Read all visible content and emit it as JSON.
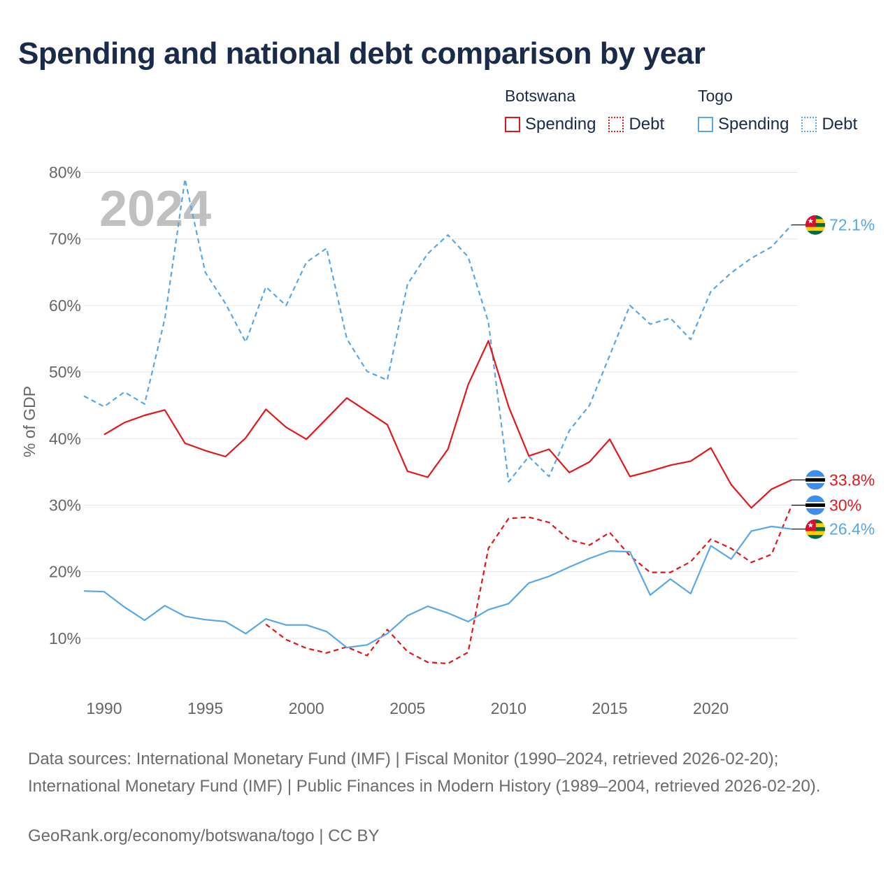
{
  "title": "Spending and national debt comparison by year",
  "watermark_year": "2024",
  "legend": {
    "groups": [
      {
        "country": "Botswana",
        "color": "#e3171b",
        "items": [
          {
            "label": "Spending",
            "style": "solid"
          },
          {
            "label": "Debt",
            "style": "dotted"
          }
        ]
      },
      {
        "country": "Togo",
        "color": "#5aa7e6",
        "items": [
          {
            "label": "Spending",
            "style": "solid"
          },
          {
            "label": "Debt",
            "style": "dotted"
          }
        ]
      }
    ]
  },
  "colors": {
    "botswana": "#e3171b",
    "togo": "#5aa7e6",
    "grid": "#e6e6e6",
    "axis_text": "#666666",
    "title": "#1b2a48",
    "watermark": "#c0c0c0"
  },
  "chart_data": {
    "type": "line",
    "title": "Spending and national debt comparison by year",
    "xlabel": "",
    "ylabel": "% of GDP",
    "xlim": [
      1989,
      2024.3
    ],
    "ylim": [
      0,
      83
    ],
    "x_ticks": [
      1990,
      1995,
      2000,
      2005,
      2010,
      2015,
      2020
    ],
    "y_ticks": [
      10,
      20,
      30,
      40,
      50,
      60,
      70,
      80
    ],
    "y_tick_labels": [
      "10%",
      "20%",
      "30%",
      "40%",
      "50%",
      "60%",
      "70%",
      "80%"
    ],
    "grid": true,
    "series": [
      {
        "name": "Togo Debt",
        "country": "Togo",
        "metric": "Debt",
        "color": "#5aa7e6",
        "dash": "dashed",
        "end_label": "72.1%",
        "flag": "togo-flag",
        "points": [
          [
            1989,
            46.4
          ],
          [
            1990,
            44.8
          ],
          [
            1991,
            47.0
          ],
          [
            1992,
            45.2
          ],
          [
            1993,
            58.0
          ],
          [
            1994,
            79.0
          ],
          [
            1995,
            65.0
          ],
          [
            1996,
            60.3
          ],
          [
            1997,
            54.5
          ],
          [
            1998,
            62.8
          ],
          [
            1999,
            60.0
          ],
          [
            2000,
            66.5
          ],
          [
            2001,
            68.6
          ],
          [
            2002,
            55.0
          ],
          [
            2003,
            50.1
          ],
          [
            2004,
            48.8
          ],
          [
            2005,
            63.2
          ],
          [
            2006,
            67.8
          ],
          [
            2007,
            70.6
          ],
          [
            2008,
            67.3
          ],
          [
            2009,
            57.5
          ],
          [
            2010,
            33.5
          ],
          [
            2011,
            37.3
          ],
          [
            2012,
            34.3
          ],
          [
            2013,
            41.2
          ],
          [
            2014,
            45.0
          ],
          [
            2015,
            52.5
          ],
          [
            2016,
            60.0
          ],
          [
            2017,
            57.2
          ],
          [
            2018,
            58.1
          ],
          [
            2019,
            54.9
          ],
          [
            2020,
            62.1
          ],
          [
            2021,
            64.9
          ],
          [
            2022,
            67.1
          ],
          [
            2023,
            68.8
          ],
          [
            2024,
            72.1
          ]
        ]
      },
      {
        "name": "Botswana Spending",
        "country": "Botswana",
        "metric": "Spending",
        "color": "#e3171b",
        "dash": "solid",
        "end_label": "33.8%",
        "flag": "botswana-flag",
        "points": [
          [
            1990,
            40.6
          ],
          [
            1991,
            42.4
          ],
          [
            1992,
            43.5
          ],
          [
            1993,
            44.3
          ],
          [
            1994,
            39.3
          ],
          [
            1995,
            38.2
          ],
          [
            1996,
            37.3
          ],
          [
            1997,
            40.1
          ],
          [
            1998,
            44.4
          ],
          [
            1999,
            41.7
          ],
          [
            2000,
            39.9
          ],
          [
            2001,
            43.0
          ],
          [
            2002,
            46.1
          ],
          [
            2003,
            44.1
          ],
          [
            2004,
            42.1
          ],
          [
            2005,
            35.1
          ],
          [
            2006,
            34.2
          ],
          [
            2007,
            38.4
          ],
          [
            2008,
            48.1
          ],
          [
            2009,
            54.7
          ],
          [
            2010,
            44.8
          ],
          [
            2011,
            37.4
          ],
          [
            2012,
            38.4
          ],
          [
            2013,
            34.9
          ],
          [
            2014,
            36.5
          ],
          [
            2015,
            39.9
          ],
          [
            2016,
            34.3
          ],
          [
            2017,
            35.1
          ],
          [
            2018,
            36.0
          ],
          [
            2019,
            36.6
          ],
          [
            2020,
            38.6
          ],
          [
            2021,
            33.1
          ],
          [
            2022,
            29.6
          ],
          [
            2023,
            32.4
          ],
          [
            2024,
            33.8
          ]
        ]
      },
      {
        "name": "Botswana Debt",
        "country": "Botswana",
        "metric": "Debt",
        "color": "#e3171b",
        "dash": "dashed",
        "end_label": "30%",
        "flag": "botswana-flag",
        "points": [
          [
            1998,
            12.1
          ],
          [
            1999,
            9.8
          ],
          [
            2000,
            8.5
          ],
          [
            2001,
            7.8
          ],
          [
            2002,
            8.7
          ],
          [
            2003,
            7.4
          ],
          [
            2004,
            11.3
          ],
          [
            2005,
            8.0
          ],
          [
            2006,
            6.4
          ],
          [
            2007,
            6.2
          ],
          [
            2008,
            7.9
          ],
          [
            2009,
            23.5
          ],
          [
            2010,
            28.0
          ],
          [
            2011,
            28.2
          ],
          [
            2012,
            27.4
          ],
          [
            2013,
            24.8
          ],
          [
            2014,
            24.0
          ],
          [
            2015,
            25.9
          ],
          [
            2016,
            22.4
          ],
          [
            2017,
            19.9
          ],
          [
            2018,
            19.9
          ],
          [
            2019,
            21.5
          ],
          [
            2020,
            24.9
          ],
          [
            2021,
            23.5
          ],
          [
            2022,
            21.4
          ],
          [
            2023,
            22.6
          ],
          [
            2024,
            30.0
          ]
        ]
      },
      {
        "name": "Togo Spending",
        "country": "Togo",
        "metric": "Spending",
        "color": "#5aa7e6",
        "dash": "solid",
        "end_label": "26.4%",
        "flag": "togo-flag",
        "points": [
          [
            1989,
            17.1
          ],
          [
            1990,
            17.0
          ],
          [
            1991,
            14.7
          ],
          [
            1992,
            12.7
          ],
          [
            1993,
            14.9
          ],
          [
            1994,
            13.3
          ],
          [
            1995,
            12.8
          ],
          [
            1996,
            12.5
          ],
          [
            1997,
            10.7
          ],
          [
            1998,
            12.9
          ],
          [
            1999,
            12.0
          ],
          [
            2000,
            12.0
          ],
          [
            2001,
            11.0
          ],
          [
            2002,
            8.6
          ],
          [
            2003,
            9.0
          ],
          [
            2004,
            10.7
          ],
          [
            2005,
            13.4
          ],
          [
            2006,
            14.8
          ],
          [
            2007,
            13.8
          ],
          [
            2008,
            12.5
          ],
          [
            2009,
            14.3
          ],
          [
            2010,
            15.2
          ],
          [
            2011,
            18.3
          ],
          [
            2012,
            19.3
          ],
          [
            2013,
            20.7
          ],
          [
            2014,
            22.0
          ],
          [
            2015,
            23.1
          ],
          [
            2016,
            23.0
          ],
          [
            2017,
            16.5
          ],
          [
            2018,
            18.9
          ],
          [
            2019,
            16.7
          ],
          [
            2020,
            23.9
          ],
          [
            2021,
            21.9
          ],
          [
            2022,
            26.1
          ],
          [
            2023,
            26.8
          ],
          [
            2024,
            26.4
          ]
        ]
      }
    ]
  },
  "sources_text": "Data sources: International Monetary Fund (IMF) | Fiscal Monitor (1990–2024, retrieved 2026-02-20); International Monetary Fund (IMF) | Public Finances in Modern History (1989–2004, retrieved 2026-02-20).",
  "credit_text": "GeoRank.org/economy/botswana/togo | CC BY"
}
